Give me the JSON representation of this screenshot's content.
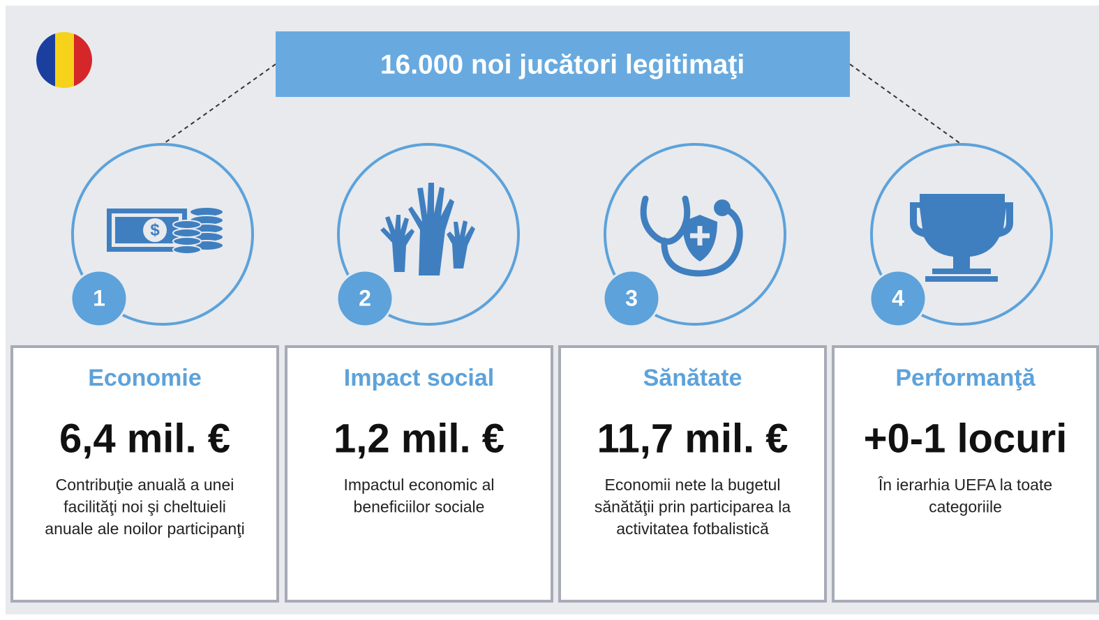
{
  "header": {
    "title": "16.000 noi jucători legitimaţi"
  },
  "items": [
    {
      "number": "1",
      "title": "Economie",
      "value": "6,4 mil. €",
      "description": [
        "Contribuţie anuală a unei",
        "facilităţi noi şi cheltuieli",
        "anuale ale noilor participanţi"
      ]
    },
    {
      "number": "2",
      "title": "Impact social",
      "value": "1,2 mil. €",
      "description": [
        "Impactul economic al",
        "beneficiilor sociale"
      ]
    },
    {
      "number": "3",
      "title": "Sănătate",
      "value": "11,7 mil. €",
      "description": [
        "Economii nete la bugetul",
        "sănătăţii prin participarea la",
        "activitatea fotbalistică"
      ]
    },
    {
      "number": "4",
      "title": "Performanţă",
      "value": "+0-1 locuri",
      "description": [
        "În ierarhia UEFA la toate",
        "categoriile"
      ]
    }
  ]
}
